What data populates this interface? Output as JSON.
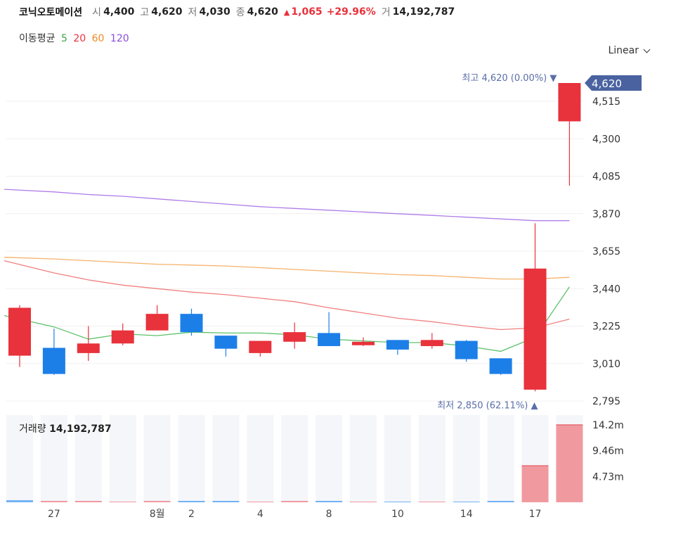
{
  "header": {
    "name": "코닉오토메이션",
    "open_label": "시",
    "open": "4,400",
    "high_label": "고",
    "high": "4,620",
    "low_label": "저",
    "low": "4,030",
    "close_label": "종",
    "close": "4,620",
    "change": "1,065",
    "change_pct": "+29.96%",
    "volume_label": "거",
    "volume": "14,192,787"
  },
  "ma_legend": {
    "title": "이동평균",
    "p5": "5",
    "p20": "20",
    "p60": "60",
    "p120": "120"
  },
  "scale_button": "Linear",
  "volume_panel": {
    "label": "거래량",
    "value": "14,192,787"
  },
  "colors": {
    "up": "#e8323c",
    "down": "#1c7fe8",
    "ma5": "#5cc26a",
    "ma20": "#f08080",
    "ma60": "#f6b26b",
    "ma120": "#b07de8",
    "tag": "#4a62a0"
  },
  "chart_data": {
    "type": "candlestick",
    "price_ylim": [
      2795,
      4620
    ],
    "price_ticks": [
      "4,515",
      "4,300",
      "4,085",
      "3,870",
      "3,655",
      "3,440",
      "3,225",
      "3,010",
      "2,795"
    ],
    "price_tick_values": [
      4515,
      4300,
      4085,
      3870,
      3655,
      3440,
      3225,
      3010,
      2795
    ],
    "x_labels": [
      "27",
      "8월",
      "2",
      "4",
      "8",
      "10",
      "14",
      "17"
    ],
    "x_label_index": [
      1,
      4,
      5,
      7,
      9,
      11,
      13,
      15
    ],
    "candles": [
      {
        "o": 3055,
        "h": 3345,
        "l": 2990,
        "c": 3330
      },
      {
        "o": 3100,
        "h": 3210,
        "l": 2945,
        "c": 2950
      },
      {
        "o": 3070,
        "h": 3225,
        "l": 3025,
        "c": 3125
      },
      {
        "o": 3125,
        "h": 3240,
        "l": 3115,
        "c": 3200
      },
      {
        "o": 3200,
        "h": 3345,
        "l": 3200,
        "c": 3295
      },
      {
        "o": 3295,
        "h": 3325,
        "l": 3170,
        "c": 3190
      },
      {
        "o": 3170,
        "h": 3170,
        "l": 3050,
        "c": 3095
      },
      {
        "o": 3070,
        "h": 3140,
        "l": 3050,
        "c": 3140
      },
      {
        "o": 3135,
        "h": 3245,
        "l": 3095,
        "c": 3190
      },
      {
        "o": 3185,
        "h": 3305,
        "l": 3110,
        "c": 3110
      },
      {
        "o": 3115,
        "h": 3160,
        "l": 3110,
        "c": 3135
      },
      {
        "o": 3145,
        "h": 3145,
        "l": 3060,
        "c": 3090
      },
      {
        "o": 3110,
        "h": 3185,
        "l": 3095,
        "c": 3145
      },
      {
        "o": 3140,
        "h": 3145,
        "l": 3020,
        "c": 3035
      },
      {
        "o": 3040,
        "h": 3040,
        "l": 2945,
        "c": 2950
      },
      {
        "o": 2860,
        "h": 3815,
        "l": 2850,
        "c": 3555
      },
      {
        "o": 4400,
        "h": 4620,
        "l": 4030,
        "c": 4620
      }
    ],
    "ma5": [
      3285,
      3220,
      3150,
      3180,
      3170,
      3190,
      3185,
      3185,
      3175,
      3150,
      3140,
      3130,
      3130,
      3110,
      3080,
      3160,
      3450
    ],
    "ma20": [
      3600,
      3530,
      3490,
      3460,
      3440,
      3420,
      3405,
      3385,
      3365,
      3330,
      3300,
      3270,
      3250,
      3225,
      3205,
      3215,
      3265
    ],
    "ma60": [
      3620,
      3610,
      3600,
      3590,
      3580,
      3575,
      3570,
      3560,
      3550,
      3540,
      3530,
      3520,
      3515,
      3505,
      3495,
      3495,
      3505
    ],
    "ma120": [
      4010,
      3995,
      3980,
      3970,
      3955,
      3940,
      3925,
      3910,
      3900,
      3890,
      3880,
      3870,
      3860,
      3850,
      3840,
      3830,
      3830
    ],
    "high_marker": {
      "label": "최고",
      "value": "4,620 (0.00%)"
    },
    "low_marker": {
      "label": "최저",
      "value": "2,850 (62.11%)"
    },
    "last_price_tag": "4,620",
    "volume_ylim": [
      0,
      16000000
    ],
    "volume_ticks": [
      "14.2m",
      "9.46m",
      "4.73m"
    ],
    "volume_tick_values": [
      14200000,
      9460000,
      4730000
    ],
    "volumes": [
      380000,
      150000,
      130000,
      0,
      150000,
      110000,
      120000,
      0,
      110000,
      100000,
      0,
      0,
      0,
      0,
      90000,
      6700000,
      14192787
    ],
    "volume_up": [
      false,
      true,
      true,
      true,
      true,
      false,
      false,
      true,
      true,
      false,
      true,
      false,
      true,
      false,
      false,
      true,
      true
    ]
  }
}
